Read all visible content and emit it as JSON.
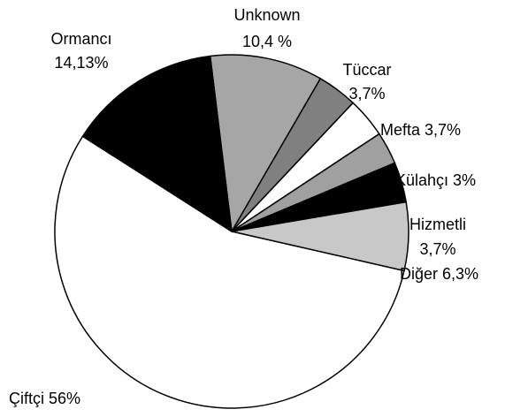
{
  "chart_data": {
    "type": "pie",
    "categories": [
      "Unknown",
      "Tüccar",
      "Mefta",
      "Külahçı",
      "Hizmetli",
      "Diğer",
      "Çiftçi",
      "Ormancı"
    ],
    "values": [
      10.4,
      3.7,
      3.7,
      3,
      3.7,
      6.3,
      56,
      14.13
    ],
    "value_labels": [
      "10,4 %",
      "3,7%",
      "3,7%",
      "3%",
      "3,7%",
      "6,3%",
      "56%",
      "14,13%"
    ],
    "colors": [
      "#a6a6a6",
      "#808080",
      "#ffffff",
      "#a0a0a0",
      "#000000",
      "#c8c8c8",
      "#ffffff",
      "#000000"
    ]
  }
}
